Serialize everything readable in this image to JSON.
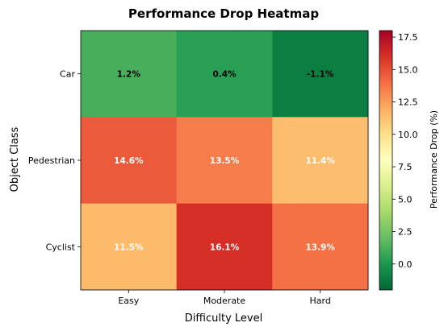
{
  "chart_data": {
    "type": "heatmap",
    "title": "Performance Drop Heatmap",
    "xlabel": "Difficulty Level",
    "ylabel": "Object Class",
    "x_categories": [
      "Easy",
      "Moderate",
      "Hard"
    ],
    "y_categories": [
      "Car",
      "Pedestrian",
      "Cyclist"
    ],
    "values": [
      [
        1.2,
        0.4,
        -1.1
      ],
      [
        14.6,
        13.5,
        11.4
      ],
      [
        11.5,
        16.1,
        13.9
      ]
    ],
    "cell_labels": [
      [
        "1.2%",
        "0.4%",
        "-1.1%"
      ],
      [
        "14.6%",
        "13.5%",
        "11.4%"
      ],
      [
        "11.5%",
        "16.1%",
        "13.9%"
      ]
    ],
    "colormap": "RdYlGn_r",
    "colorbar": {
      "label": "Performance Drop (%)",
      "range": [
        -2.0,
        18.0
      ],
      "ticks": [
        0.0,
        2.5,
        5.0,
        7.5,
        10.0,
        12.5,
        15.0,
        17.5
      ],
      "tick_labels": [
        "0.0",
        "2.5",
        "5.0",
        "7.5",
        "10.0",
        "12.5",
        "15.0",
        "17.5"
      ]
    }
  }
}
